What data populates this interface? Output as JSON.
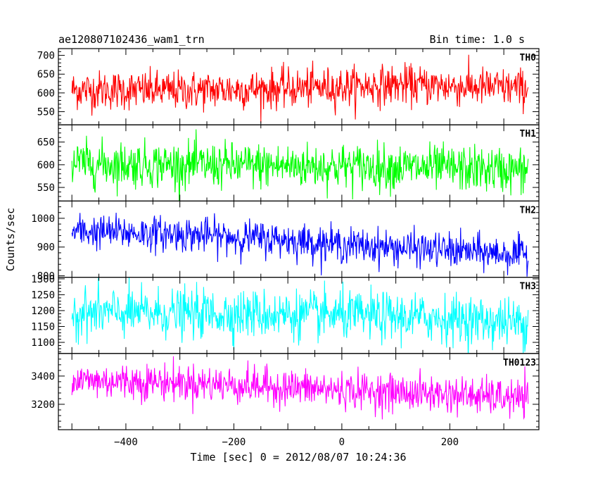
{
  "chart_data": {
    "type": "line",
    "title": "ae120807102436_wam1_trn",
    "subtitle": "Bin time: 1.0 s",
    "xlabel": "Time [sec] 0 = 2012/08/07 10:24:36",
    "ylabel": "Counts/sec",
    "xlim": [
      -500,
      345
    ],
    "x_range_plot": [
      -525,
      365
    ],
    "x_ticks": [
      -400,
      -200,
      0,
      200
    ],
    "x_tick_labels": [
      "−400",
      "−200",
      "0",
      "200"
    ],
    "grid": false,
    "panels": [
      {
        "name": "TH0",
        "color": "#ff0000",
        "ylim": [
          515,
          718
        ],
        "y_ticks": [
          550,
          600,
          650,
          700
        ],
        "y_tick_labels": [
          "550",
          "600",
          "650",
          "700"
        ],
        "trend": [
          [
            -500,
            608
          ],
          [
            -300,
            606
          ],
          [
            -100,
            612
          ],
          [
            0,
            616
          ],
          [
            100,
            622
          ],
          [
            345,
            612
          ]
        ],
        "noise": 26,
        "clip": true
      },
      {
        "name": "TH1",
        "color": "#00ff00",
        "ylim": [
          520,
          688
        ],
        "y_ticks": [
          550,
          600,
          650
        ],
        "y_tick_labels": [
          "550",
          "600",
          "650"
        ],
        "trend": [
          [
            -500,
            603
          ],
          [
            -200,
            598
          ],
          [
            0,
            597
          ],
          [
            200,
            592
          ],
          [
            345,
            587
          ]
        ],
        "noise": 25,
        "clip": true
      },
      {
        "name": "TH2",
        "color": "#0000ff",
        "ylim": [
          795,
          1060
        ],
        "y_ticks": [
          800,
          900,
          1000
        ],
        "y_tick_labels": [
          "800",
          "900",
          "1000"
        ],
        "trend": [
          [
            -500,
            955
          ],
          [
            -300,
            945
          ],
          [
            -100,
            925
          ],
          [
            0,
            908
          ],
          [
            200,
            888
          ],
          [
            345,
            872
          ]
        ],
        "noise": 30,
        "clip": true
      },
      {
        "name": "TH3",
        "color": "#00ffff",
        "ylim": [
          1065,
          1305
        ],
        "y_ticks": [
          1100,
          1150,
          1200,
          1250,
          1300
        ],
        "y_tick_labels": [
          "1100",
          "1150",
          "1200",
          "1250",
          "1300"
        ],
        "trend": [
          [
            -500,
            1193
          ],
          [
            -200,
            1190
          ],
          [
            0,
            1185
          ],
          [
            200,
            1175
          ],
          [
            345,
            1160
          ]
        ],
        "noise": 38,
        "clip": true
      },
      {
        "name": "TH0123",
        "color": "#ff00ff",
        "ylim": [
          3020,
          3560
        ],
        "y_ticks": [
          3200,
          3400
        ],
        "y_tick_labels": [
          "3200",
          "3400"
        ],
        "trend": [
          [
            -500,
            3370
          ],
          [
            -300,
            3355
          ],
          [
            -100,
            3320
          ],
          [
            0,
            3300
          ],
          [
            200,
            3270
          ],
          [
            345,
            3235
          ]
        ],
        "noise": 65,
        "clip": true
      }
    ]
  }
}
